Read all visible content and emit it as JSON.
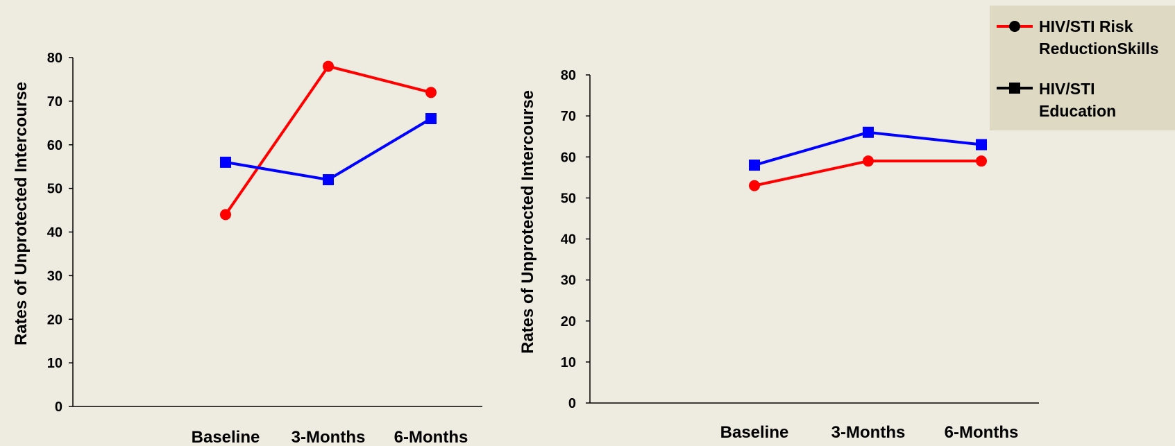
{
  "chart_data": [
    {
      "type": "line",
      "title": "",
      "xlabel": "",
      "ylabel": "Rates of Unprotected Intercourse",
      "ylim": [
        0,
        80
      ],
      "yticks": [
        0,
        10,
        20,
        30,
        40,
        50,
        60,
        70,
        80
      ],
      "categories": [
        "Baseline",
        "3-Months",
        "6-Months"
      ],
      "series": [
        {
          "name": "HIV/STI Risk ReductionSkills",
          "color": "#ff0000",
          "marker": "circle",
          "values": [
            44,
            78,
            72
          ]
        },
        {
          "name": "HIV/STI Education",
          "color": "#0000ff",
          "marker": "square",
          "values": [
            56,
            52,
            66
          ]
        }
      ],
      "grid": false
    },
    {
      "type": "line",
      "title": "",
      "xlabel": "",
      "ylabel": "Rates of Unprotected Intercourse",
      "ylim": [
        0,
        80
      ],
      "yticks": [
        0,
        10,
        20,
        30,
        40,
        50,
        60,
        70,
        80
      ],
      "categories": [
        "Baseline",
        "3-Months",
        "6-Months"
      ],
      "series": [
        {
          "name": "HIV/STI Risk ReductionSkills",
          "color": "#ff0000",
          "marker": "circle",
          "values": [
            53,
            59,
            59
          ]
        },
        {
          "name": "HIV/STI Education",
          "color": "#0000ff",
          "marker": "square",
          "values": [
            58,
            66,
            63
          ]
        }
      ],
      "grid": false
    }
  ],
  "legend": {
    "placement": "top-right",
    "background": "#ddd9c3",
    "items": [
      {
        "label_line1": "HIV/STI Risk",
        "label_line2": "ReductionSkills",
        "marker": "circle",
        "color": "#ff0000",
        "marker_color": "#000000"
      },
      {
        "label_line1": "HIV/STI",
        "label_line2": "Education",
        "marker": "square",
        "color": "#000000",
        "marker_color": "#000000"
      }
    ]
  }
}
